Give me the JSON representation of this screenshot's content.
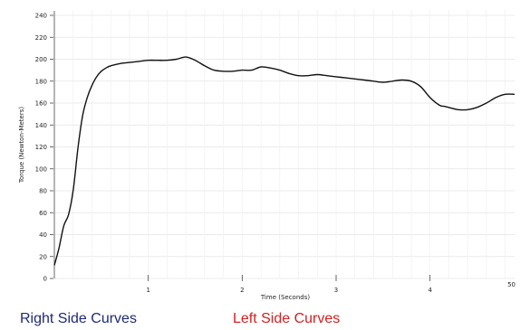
{
  "chart_data": {
    "type": "line",
    "title": "",
    "xlabel": "Time (Seconds)",
    "ylabel": "Torque (Newton-Meters)",
    "xlim": [
      0,
      4.9
    ],
    "ylim": [
      0,
      240
    ],
    "x_ticks": [
      1,
      2,
      3,
      4
    ],
    "x_tick_labels": [
      "1",
      "2",
      "3",
      "4"
    ],
    "x_end_label": "50",
    "y_ticks": [
      0,
      20,
      40,
      60,
      80,
      100,
      120,
      140,
      160,
      180,
      200,
      220,
      240
    ],
    "y_tick_labels": [
      "0",
      "20",
      "40",
      "60",
      "80",
      "100",
      "120",
      "140",
      "160",
      "180",
      "200",
      "220",
      "240"
    ],
    "grid": true,
    "series": [
      {
        "color": "#111111",
        "x": [
          0.0,
          0.05,
          0.1,
          0.15,
          0.2,
          0.25,
          0.3,
          0.35,
          0.4,
          0.45,
          0.5,
          0.55,
          0.6,
          0.7,
          0.8,
          0.9,
          1.0,
          1.1,
          1.2,
          1.3,
          1.4,
          1.5,
          1.6,
          1.7,
          1.8,
          1.9,
          2.0,
          2.1,
          2.2,
          2.3,
          2.4,
          2.5,
          2.6,
          2.7,
          2.8,
          2.9,
          3.0,
          3.1,
          3.2,
          3.3,
          3.4,
          3.5,
          3.6,
          3.7,
          3.8,
          3.9,
          4.0,
          4.1,
          4.15,
          4.2,
          4.3,
          4.4,
          4.5,
          4.6,
          4.7,
          4.8,
          4.9
        ],
        "y": [
          12,
          28,
          48,
          58,
          80,
          118,
          148,
          165,
          176,
          184,
          189,
          192,
          194,
          196,
          197,
          198,
          199,
          199,
          199,
          200,
          202,
          199,
          194,
          190,
          189,
          189,
          190,
          190,
          193,
          192,
          190,
          187,
          185,
          185,
          186,
          185,
          184,
          183,
          182,
          181,
          180,
          179,
          180,
          181,
          180,
          175,
          165,
          158,
          157,
          156,
          154,
          154,
          156,
          160,
          165,
          168,
          168
        ]
      }
    ]
  },
  "legend": {
    "right_label": "Right Side Curves",
    "right_color": "#1f2a7a",
    "left_label": "Left Side Curves",
    "left_color": "#d42020"
  }
}
